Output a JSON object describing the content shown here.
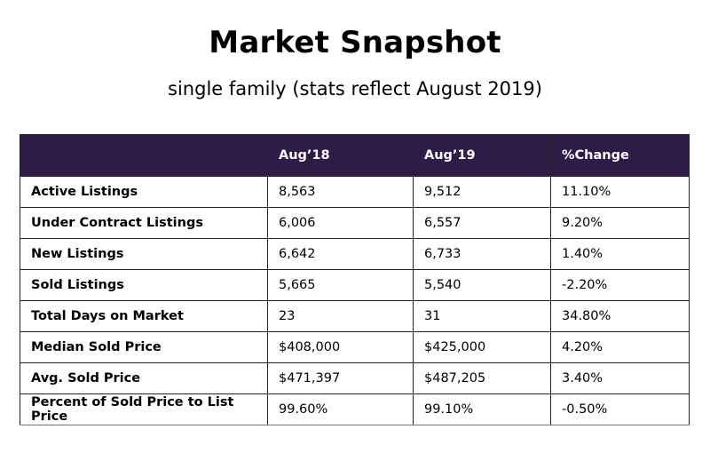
{
  "header": {
    "title": "Market Snapshot",
    "subtitle": "single family (stats reflect August 2019)"
  },
  "colors": {
    "header_background": "#2f1b47",
    "header_text": "#ffffff"
  },
  "table": {
    "columns": [
      "",
      "Aug’18",
      "Aug’19",
      "%Change"
    ],
    "rows": [
      {
        "label": "Active Listings",
        "aug18": "8,563",
        "aug19": "9,512",
        "change": "11.10%"
      },
      {
        "label": "Under Contract Listings",
        "aug18": "6,006",
        "aug19": "6,557",
        "change": "9.20%"
      },
      {
        "label": "New Listings",
        "aug18": "6,642",
        "aug19": "6,733",
        "change": "1.40%"
      },
      {
        "label": "Sold Listings",
        "aug18": "5,665",
        "aug19": "5,540",
        "change": "-2.20%"
      },
      {
        "label": "Total Days on Market",
        "aug18": "23",
        "aug19": "31",
        "change": "34.80%"
      },
      {
        "label": "Median Sold Price",
        "aug18": "$408,000",
        "aug19": "$425,000",
        "change": "4.20%"
      },
      {
        "label": "Avg. Sold Price",
        "aug18": "$471,397",
        "aug19": "$487,205",
        "change": "3.40%"
      },
      {
        "label": "Percent of Sold Price to List Price",
        "aug18": "99.60%",
        "aug19": "99.10%",
        "change": "-0.50%"
      }
    ]
  }
}
